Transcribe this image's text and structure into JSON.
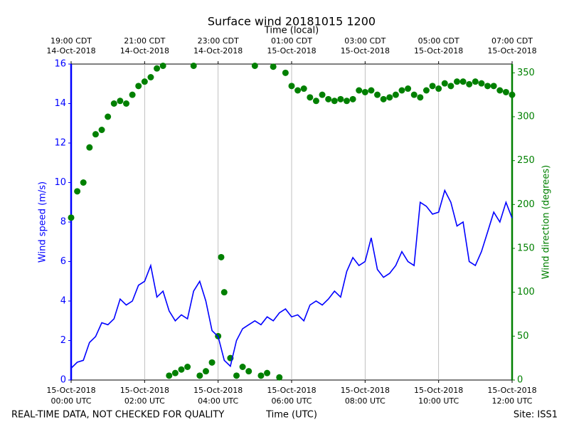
{
  "chart_data": {
    "type": "line",
    "title": "Surface wind 20181015 1200",
    "top_xlabel": "Time (local)",
    "xlabel": "Time (UTC)",
    "ylabel": "Wind speed (m/s)",
    "y2label": "Wind direction (degrees)",
    "footer_left": "REAL-TIME DATA, NOT CHECKED FOR QUALITY",
    "footer_right": "Site: ISS1",
    "xlim": [
      "2018-10-15T00:00",
      "2018-10-15T12:00"
    ],
    "xticks": [
      {
        "value": "2018-10-15T00:00",
        "label": [
          "15-Oct-2018",
          "00:00 UTC"
        ]
      },
      {
        "value": "2018-10-15T02:00",
        "label": [
          "15-Oct-2018",
          "02:00 UTC"
        ]
      },
      {
        "value": "2018-10-15T04:00",
        "label": [
          "15-Oct-2018",
          "04:00 UTC"
        ]
      },
      {
        "value": "2018-10-15T06:00",
        "label": [
          "15-Oct-2018",
          "06:00 UTC"
        ]
      },
      {
        "value": "2018-10-15T08:00",
        "label": [
          "15-Oct-2018",
          "08:00 UTC"
        ]
      },
      {
        "value": "2018-10-15T10:00",
        "label": [
          "15-Oct-2018",
          "10:00 UTC"
        ]
      },
      {
        "value": "2018-10-15T12:00",
        "label": [
          "15-Oct-2018",
          "12:00 UTC"
        ]
      }
    ],
    "top_xticks": [
      {
        "value": "2018-10-15T00:00",
        "label": [
          "19:00 CDT",
          "14-Oct-2018"
        ]
      },
      {
        "value": "2018-10-15T02:00",
        "label": [
          "21:00 CDT",
          "14-Oct-2018"
        ]
      },
      {
        "value": "2018-10-15T04:00",
        "label": [
          "23:00 CDT",
          "14-Oct-2018"
        ]
      },
      {
        "value": "2018-10-15T06:00",
        "label": [
          "01:00 CDT",
          "15-Oct-2018"
        ]
      },
      {
        "value": "2018-10-15T08:00",
        "label": [
          "03:00 CDT",
          "15-Oct-2018"
        ]
      },
      {
        "value": "2018-10-15T10:00",
        "label": [
          "05:00 CDT",
          "15-Oct-2018"
        ]
      },
      {
        "value": "2018-10-15T12:00",
        "label": [
          "07:00 CDT",
          "15-Oct-2018"
        ]
      }
    ],
    "ylim": [
      0,
      16
    ],
    "yticks": [
      0,
      2,
      4,
      6,
      8,
      10,
      12,
      14,
      16
    ],
    "ycolor": "#0000ff",
    "y2lim": [
      0,
      360
    ],
    "y2ticks": [
      0,
      50,
      100,
      150,
      200,
      250,
      300,
      350
    ],
    "y2color": "#008000",
    "grid": true,
    "series": [
      {
        "type": "line",
        "color": "#0000ff",
        "axis": "y",
        "x": [
          "2018-10-15T00:00",
          "2018-10-15T00:10",
          "2018-10-15T00:20",
          "2018-10-15T00:30",
          "2018-10-15T00:40",
          "2018-10-15T00:50",
          "2018-10-15T01:00",
          "2018-10-15T01:10",
          "2018-10-15T01:20",
          "2018-10-15T01:30",
          "2018-10-15T01:40",
          "2018-10-15T01:50",
          "2018-10-15T02:00",
          "2018-10-15T02:10",
          "2018-10-15T02:20",
          "2018-10-15T02:30",
          "2018-10-15T02:40",
          "2018-10-15T02:50",
          "2018-10-15T03:00",
          "2018-10-15T03:10",
          "2018-10-15T03:20",
          "2018-10-15T03:30",
          "2018-10-15T03:40",
          "2018-10-15T03:50",
          "2018-10-15T04:00",
          "2018-10-15T04:10",
          "2018-10-15T04:20",
          "2018-10-15T04:30",
          "2018-10-15T04:40",
          "2018-10-15T04:50",
          "2018-10-15T05:00",
          "2018-10-15T05:10",
          "2018-10-15T05:20",
          "2018-10-15T05:30",
          "2018-10-15T05:40",
          "2018-10-15T05:50",
          "2018-10-15T06:00",
          "2018-10-15T06:10",
          "2018-10-15T06:20",
          "2018-10-15T06:30",
          "2018-10-15T06:40",
          "2018-10-15T06:50",
          "2018-10-15T07:00",
          "2018-10-15T07:10",
          "2018-10-15T07:20",
          "2018-10-15T07:30",
          "2018-10-15T07:40",
          "2018-10-15T07:50",
          "2018-10-15T08:00",
          "2018-10-15T08:10",
          "2018-10-15T08:20",
          "2018-10-15T08:30",
          "2018-10-15T08:40",
          "2018-10-15T08:50",
          "2018-10-15T09:00",
          "2018-10-15T09:10",
          "2018-10-15T09:20",
          "2018-10-15T09:30",
          "2018-10-15T09:40",
          "2018-10-15T09:50",
          "2018-10-15T10:00",
          "2018-10-15T10:10",
          "2018-10-15T10:20",
          "2018-10-15T10:30",
          "2018-10-15T10:40",
          "2018-10-15T10:50",
          "2018-10-15T11:00",
          "2018-10-15T11:10",
          "2018-10-15T11:20",
          "2018-10-15T11:30",
          "2018-10-15T11:40",
          "2018-10-15T11:50",
          "2018-10-15T12:00"
        ],
        "values": [
          0.6,
          0.9,
          1.0,
          1.9,
          2.2,
          2.9,
          2.8,
          3.1,
          4.1,
          3.8,
          4.0,
          4.8,
          5.0,
          5.8,
          4.2,
          4.5,
          3.5,
          3.0,
          3.3,
          3.1,
          4.5,
          5.0,
          4.0,
          2.5,
          2.2,
          1.0,
          0.7,
          2.0,
          2.6,
          2.8,
          3.0,
          2.8,
          3.2,
          3.0,
          3.4,
          3.6,
          3.2,
          3.3,
          3.0,
          3.8,
          4.0,
          3.8,
          4.1,
          4.5,
          4.2,
          5.5,
          6.2,
          5.8,
          6.0,
          7.2,
          5.6,
          5.2,
          5.4,
          5.8,
          6.5,
          6.0,
          5.8,
          9.0,
          8.8,
          8.4,
          8.5,
          9.6,
          9.0,
          7.8,
          8.0,
          6.0,
          5.8,
          6.5,
          7.5,
          8.5,
          8.0,
          9.0,
          8.2
        ]
      },
      {
        "type": "scatter",
        "color": "#008000",
        "axis": "y2",
        "x": [
          "2018-10-15T00:00",
          "2018-10-15T00:10",
          "2018-10-15T00:20",
          "2018-10-15T00:30",
          "2018-10-15T00:40",
          "2018-10-15T00:50",
          "2018-10-15T01:00",
          "2018-10-15T01:10",
          "2018-10-15T01:20",
          "2018-10-15T01:30",
          "2018-10-15T01:40",
          "2018-10-15T01:50",
          "2018-10-15T02:00",
          "2018-10-15T02:10",
          "2018-10-15T02:20",
          "2018-10-15T02:30",
          "2018-10-15T02:40",
          "2018-10-15T02:50",
          "2018-10-15T03:00",
          "2018-10-15T03:10",
          "2018-10-15T03:20",
          "2018-10-15T03:30",
          "2018-10-15T03:40",
          "2018-10-15T03:50",
          "2018-10-15T04:00",
          "2018-10-15T04:05",
          "2018-10-15T04:10",
          "2018-10-15T04:20",
          "2018-10-15T04:30",
          "2018-10-15T04:40",
          "2018-10-15T04:50",
          "2018-10-15T05:00",
          "2018-10-15T05:10",
          "2018-10-15T05:20",
          "2018-10-15T05:30",
          "2018-10-15T05:40",
          "2018-10-15T05:50",
          "2018-10-15T06:00",
          "2018-10-15T06:10",
          "2018-10-15T06:20",
          "2018-10-15T06:30",
          "2018-10-15T06:40",
          "2018-10-15T06:50",
          "2018-10-15T07:00",
          "2018-10-15T07:10",
          "2018-10-15T07:20",
          "2018-10-15T07:30",
          "2018-10-15T07:40",
          "2018-10-15T07:50",
          "2018-10-15T08:00",
          "2018-10-15T08:10",
          "2018-10-15T08:20",
          "2018-10-15T08:30",
          "2018-10-15T08:40",
          "2018-10-15T08:50",
          "2018-10-15T09:00",
          "2018-10-15T09:10",
          "2018-10-15T09:20",
          "2018-10-15T09:30",
          "2018-10-15T09:40",
          "2018-10-15T09:50",
          "2018-10-15T10:00",
          "2018-10-15T10:10",
          "2018-10-15T10:20",
          "2018-10-15T10:30",
          "2018-10-15T10:40",
          "2018-10-15T10:50",
          "2018-10-15T11:00",
          "2018-10-15T11:10",
          "2018-10-15T11:20",
          "2018-10-15T11:30",
          "2018-10-15T11:40",
          "2018-10-15T11:50",
          "2018-10-15T12:00"
        ],
        "values": [
          185,
          215,
          225,
          265,
          280,
          285,
          300,
          315,
          318,
          315,
          325,
          335,
          340,
          345,
          355,
          358,
          5,
          8,
          12,
          15,
          358,
          5,
          10,
          20,
          50,
          140,
          100,
          25,
          5,
          15,
          10,
          358,
          5,
          8,
          357,
          3,
          350,
          335,
          330,
          332,
          322,
          318,
          325,
          320,
          318,
          320,
          318,
          320,
          330,
          328,
          330,
          325,
          320,
          322,
          325,
          330,
          332,
          325,
          322,
          330,
          335,
          332,
          338,
          335,
          340,
          340,
          337,
          340,
          338,
          335,
          335,
          330,
          328,
          325
        ]
      }
    ]
  }
}
